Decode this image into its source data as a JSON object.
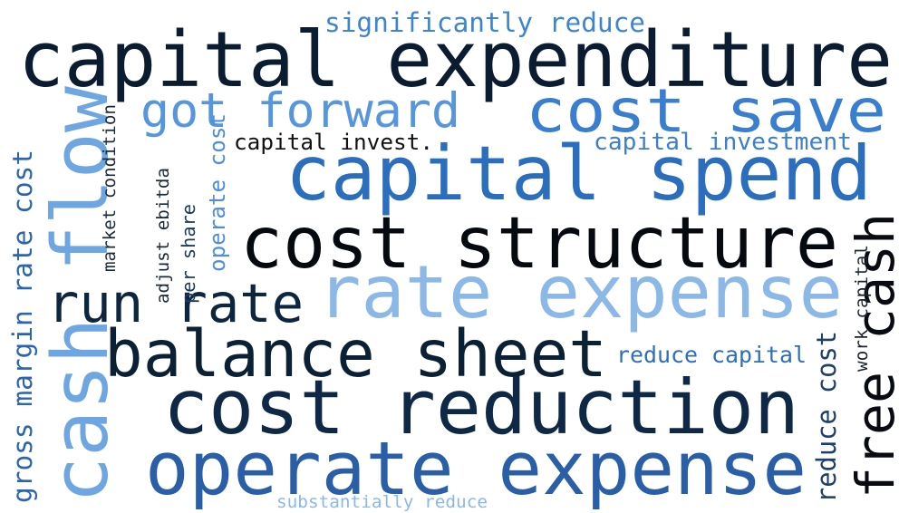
{
  "words": [
    {
      "text": "capital expenditure",
      "color": "#0b1c30"
    },
    {
      "text": "significantly reduce",
      "color": "#3d85d0"
    },
    {
      "text": "cost save",
      "color": "#3a7ed0"
    },
    {
      "text": "got forward",
      "color": "#5596dc"
    },
    {
      "text": "capital invest.",
      "color": "#111111"
    },
    {
      "text": "capital investment",
      "color": "#3b7fcf"
    },
    {
      "text": "capital spend",
      "color": "#2a6ebd"
    },
    {
      "text": "cost structure",
      "color": "#050a10"
    },
    {
      "text": "rate expense",
      "color": "#8cb8e8"
    },
    {
      "text": "run rate",
      "color": "#0d2640"
    },
    {
      "text": "balance sheet",
      "color": "#0b1f35"
    },
    {
      "text": "reduce capital",
      "color": "#2e6fb8"
    },
    {
      "text": "cost reduction",
      "color": "#0e2846"
    },
    {
      "text": "operate expense",
      "color": "#2a5fa8"
    },
    {
      "text": "substantially reduce",
      "color": "#8ab8ea"
    },
    {
      "text": "cash flow",
      "color": "#6ea6e2"
    },
    {
      "text": "gross margin rate cost",
      "color": "#2a65ad"
    },
    {
      "text": "market condition",
      "color": "#1a2a3a"
    },
    {
      "text": "adjust ebitda",
      "color": "#1a2a3a"
    },
    {
      "text": "per share",
      "color": "#1d3a5f"
    },
    {
      "text": "operate cost",
      "color": "#4d8fd8"
    },
    {
      "text": "free cash",
      "color": "#080c12"
    },
    {
      "text": "work capital",
      "color": "#1a2430"
    },
    {
      "text": "reduce cost",
      "color": "#1d3f6a"
    }
  ]
}
